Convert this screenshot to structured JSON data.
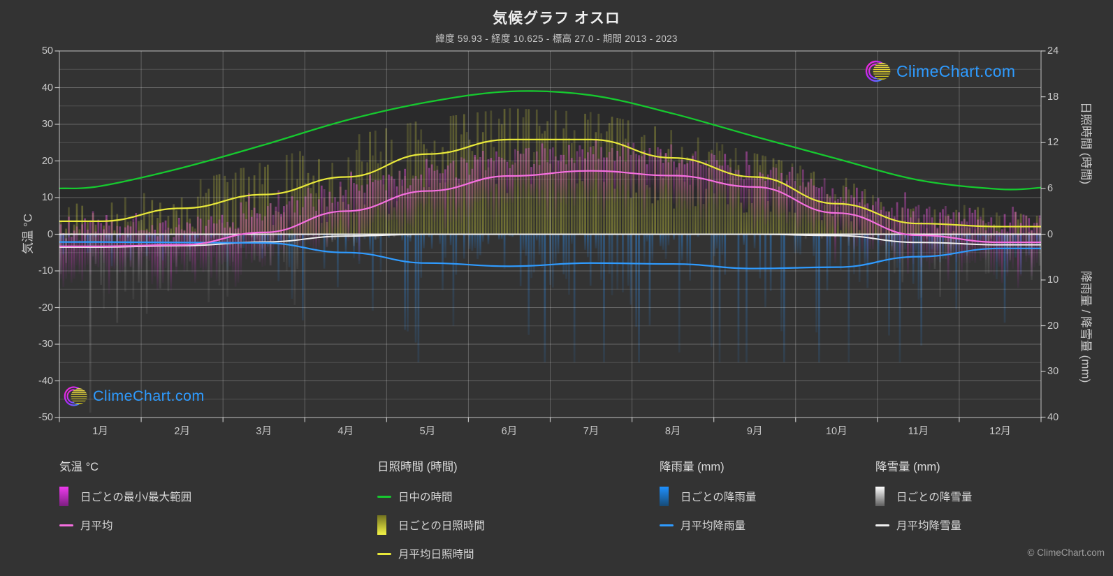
{
  "page": {
    "title": "気候グラフ オスロ",
    "subtitle": "緯度 59.93 - 経度 10.625 - 標高 27.0 - 期間 2013 - 2023",
    "footer": "© ClimeChart.com",
    "watermark": "ClimeChart.com",
    "background": "#333333",
    "silhouette_color": "#2a2a2b"
  },
  "axes": {
    "temp": {
      "label": "気温 °C",
      "range": [
        -50,
        50
      ],
      "ticks": [
        50,
        40,
        30,
        20,
        10,
        0,
        -10,
        -20,
        -30,
        -40,
        -50
      ]
    },
    "sun": {
      "label": "日照時間 (時間)",
      "range": [
        0,
        24
      ],
      "ticks": [
        24,
        18,
        12,
        6,
        0
      ]
    },
    "precip": {
      "label": "降雨量 / 降雪量 (mm)",
      "range": [
        0,
        40
      ],
      "ticks": [
        10,
        20,
        30,
        40
      ]
    },
    "months": [
      "1月",
      "2月",
      "3月",
      "4月",
      "5月",
      "6月",
      "7月",
      "8月",
      "9月",
      "10月",
      "11月",
      "12月"
    ]
  },
  "legend": {
    "groups": [
      {
        "header": "気温 °C",
        "items": [
          {
            "swatch": "gradient",
            "colors": [
              "#ee3bee",
              "#7c1f80"
            ],
            "label": "日ごとの最小/最大範囲"
          },
          {
            "swatch": "line",
            "colors": [
              "#f56fe0"
            ],
            "label": "月平均"
          }
        ]
      },
      {
        "header": "日照時間 (時間)",
        "items": [
          {
            "swatch": "line",
            "colors": [
              "#16c92f"
            ],
            "label": "日中の時間"
          },
          {
            "swatch": "gradient",
            "colors": [
              "#72721f",
              "#f4f446"
            ],
            "label": "日ごとの日照時間"
          },
          {
            "swatch": "line",
            "colors": [
              "#e8e83a"
            ],
            "label": "月平均日照時間"
          }
        ]
      },
      {
        "header": "降雨量 (mm)",
        "items": [
          {
            "swatch": "gradient",
            "colors": [
              "#1e90ff",
              "#174a75"
            ],
            "label": "日ごとの降雨量"
          },
          {
            "swatch": "line",
            "colors": [
              "#2f9bff"
            ],
            "label": "月平均降雨量"
          }
        ]
      },
      {
        "header": "降雪量 (mm)",
        "items": [
          {
            "swatch": "gradient",
            "colors": [
              "#ffffff",
              "#5d5d5d"
            ],
            "label": "日ごとの降雪量"
          },
          {
            "swatch": "line",
            "colors": [
              "#efefef"
            ],
            "label": "月平均降雪量"
          }
        ]
      }
    ]
  },
  "chart_data": {
    "type": "area",
    "subtype": "climate-composite",
    "title": "気候グラフ オスロ",
    "categories": [
      "1月",
      "2月",
      "3月",
      "4月",
      "5月",
      "6月",
      "7月",
      "8月",
      "9月",
      "10月",
      "11月",
      "12月"
    ],
    "y_left": {
      "label": "気温 °C",
      "range": [
        -50,
        50
      ],
      "gridstep": 5
    },
    "y_right_sun": {
      "label": "日照時間 (時間)",
      "range": [
        0,
        24
      ]
    },
    "y_right_precip": {
      "label": "降雨量 / 降雪量 (mm)",
      "range": [
        0,
        40
      ]
    },
    "series": [
      {
        "name": "日中の時間",
        "axis": "sun",
        "unit": "h",
        "color": "#16c92f",
        "style": "smooth",
        "values": [
          6.3,
          8.7,
          11.7,
          14.9,
          17.3,
          18.7,
          18.2,
          15.8,
          12.8,
          9.9,
          7.1,
          5.9
        ],
        "edge_values": [
          6.0,
          6.1
        ]
      },
      {
        "name": "月平均日照時間",
        "axis": "sun",
        "unit": "h",
        "color": "#e8e83a",
        "style": "stepped",
        "values": [
          1.7,
          3.4,
          5.2,
          7.5,
          10.5,
          12.4,
          12.4,
          10.0,
          7.5,
          4.0,
          1.4,
          1.0
        ]
      },
      {
        "name": "月平均",
        "axis": "temp",
        "unit": "°C",
        "color": "#f56fe0",
        "style": "stepped",
        "values": [
          -3.3,
          -2.9,
          0.5,
          6.3,
          11.8,
          15.9,
          17.3,
          16.0,
          12.9,
          5.8,
          -0.3,
          -2.2
        ]
      },
      {
        "name": "月平均降雨量",
        "axis": "precip",
        "unit": "mm/日",
        "color": "#2f9bff",
        "style": "stepped",
        "values": [
          1.7,
          1.8,
          1.9,
          4.0,
          6.3,
          7.0,
          6.3,
          6.5,
          7.5,
          7.2,
          4.9,
          3.1
        ]
      },
      {
        "name": "月平均降雪量",
        "axis": "precip",
        "unit": "mm/日",
        "color": "#efefef",
        "style": "stepped",
        "values": [
          2.8,
          2.5,
          1.7,
          0.4,
          0.0,
          0.0,
          0.0,
          0.0,
          0.0,
          0.3,
          1.8,
          2.3
        ]
      }
    ],
    "daily_bands": {
      "temp_range": {
        "name": "日ごとの最小/最大範囲",
        "color_top": "rgba(240,90,225,0.60)",
        "color_mid": "rgba(216,60,200,0.45)",
        "color_bottom": "rgba(150,45,160,0.10)",
        "spread_up_c": [
          3.2,
          7.0
        ],
        "spread_down_c": [
          3.2,
          7.7
        ]
      },
      "sunshine": {
        "name": "日ごとの日照時間",
        "color_top": "rgba(222,222,66,0.50)",
        "color_bottom": "rgba(222,222,66,0.72)",
        "daylight_margin_h": 2.2
      },
      "rain": {
        "name": "日ごとの降雨量",
        "color_top": "rgba(45,140,235,0.65)",
        "color_bottom": "rgba(45,140,235,0.18)",
        "max_mm": 28
      },
      "snow": {
        "name": "日ごとの降雪量",
        "color_top": "rgba(255,255,255,0.46)",
        "color_bottom": "rgba(235,235,235,0.14)",
        "max_mm": 39
      },
      "seed": 11
    }
  }
}
